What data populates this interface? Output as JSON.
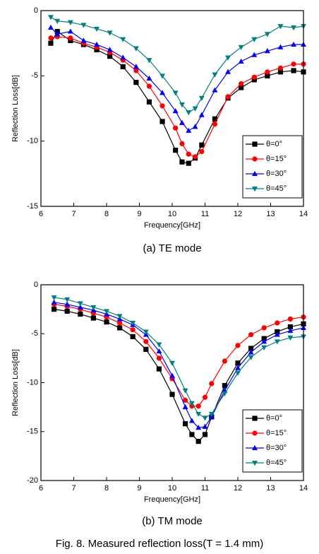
{
  "chart_data": [
    {
      "type": "line",
      "caption": "(a) TE mode",
      "xlabel": "Frequency[GHz]",
      "ylabel": "Reflection Loss[dB]",
      "xlim": [
        6,
        14
      ],
      "ylim": [
        -15,
        0
      ],
      "xticks": [
        6,
        7,
        8,
        9,
        10,
        11,
        12,
        13,
        14
      ],
      "yticks": [
        0,
        -5,
        -10,
        -15
      ],
      "legend": "lower right",
      "x": [
        6.3,
        6.5,
        6.9,
        7.3,
        7.7,
        8.1,
        8.5,
        8.9,
        9.3,
        9.7,
        10.1,
        10.3,
        10.5,
        10.7,
        10.9,
        11.3,
        11.7,
        12.1,
        12.5,
        12.9,
        13.3,
        13.7,
        14.0
      ],
      "series": [
        {
          "name": "θ=0°",
          "color": "#000000",
          "marker": "square",
          "values": [
            -2.5,
            -1.6,
            -2.3,
            -2.6,
            -3.0,
            -3.5,
            -4.3,
            -5.5,
            -7.0,
            -8.5,
            -10.7,
            -11.6,
            -11.7,
            -11.3,
            -10.3,
            -8.3,
            -6.7,
            -5.9,
            -5.3,
            -5.0,
            -4.7,
            -4.6,
            -4.7
          ]
        },
        {
          "name": "θ=15°",
          "color": "#ff0000",
          "marker": "circle",
          "values": [
            -2.1,
            -2.0,
            -2.1,
            -2.5,
            -2.8,
            -3.2,
            -3.8,
            -4.6,
            -5.8,
            -7.3,
            -9.0,
            -10.2,
            -11.0,
            -11.2,
            -10.8,
            -8.7,
            -6.6,
            -5.6,
            -5.1,
            -4.7,
            -4.4,
            -4.1,
            -4.1
          ]
        },
        {
          "name": "θ=30°",
          "color": "#0000ff",
          "marker": "triangle-up",
          "values": [
            -1.3,
            -1.8,
            -1.6,
            -2.3,
            -2.6,
            -3.0,
            -3.6,
            -4.3,
            -5.2,
            -6.3,
            -7.7,
            -8.6,
            -9.2,
            -8.9,
            -8.0,
            -6.1,
            -4.7,
            -3.9,
            -3.4,
            -3.1,
            -2.8,
            -2.6,
            -2.6
          ]
        },
        {
          "name": "θ=45°",
          "color": "#008080",
          "marker": "triangle-down",
          "values": [
            -0.5,
            -0.8,
            -0.9,
            -1.1,
            -1.4,
            -1.7,
            -2.2,
            -2.9,
            -3.8,
            -5.0,
            -6.3,
            -7.2,
            -7.8,
            -7.5,
            -6.7,
            -4.9,
            -3.6,
            -2.8,
            -2.2,
            -1.8,
            -1.2,
            -1.3,
            -1.2
          ]
        }
      ]
    },
    {
      "type": "line",
      "caption": "(b) TM mode",
      "xlabel": "Frequency[GHz]",
      "ylabel": "Reflection Loss[dB]",
      "xlim": [
        6,
        14
      ],
      "ylim": [
        -20,
        0
      ],
      "xticks": [
        6,
        7,
        8,
        9,
        10,
        11,
        12,
        13,
        14
      ],
      "yticks": [
        0,
        -5,
        -10,
        -15,
        -20
      ],
      "legend": "lower right",
      "x": [
        6.4,
        6.8,
        7.2,
        7.6,
        8.0,
        8.4,
        8.8,
        9.2,
        9.6,
        10.0,
        10.4,
        10.6,
        10.8,
        11.0,
        11.2,
        11.6,
        12.0,
        12.4,
        12.8,
        13.2,
        13.6,
        14.0
      ],
      "series": [
        {
          "name": "θ=0°",
          "color": "#000000",
          "marker": "square",
          "values": [
            -2.5,
            -2.7,
            -3.0,
            -3.4,
            -3.8,
            -4.4,
            -5.3,
            -6.6,
            -8.6,
            -11.2,
            -14.2,
            -15.3,
            -16.0,
            -15.3,
            -13.5,
            -10.3,
            -8.0,
            -6.5,
            -5.5,
            -4.8,
            -4.3,
            -4.0
          ]
        },
        {
          "name": "θ=15°",
          "color": "#ff0000",
          "marker": "circle",
          "values": [
            -2.0,
            -2.2,
            -2.5,
            -2.9,
            -3.3,
            -3.9,
            -4.6,
            -5.8,
            -7.5,
            -9.6,
            -11.8,
            -12.4,
            -12.4,
            -11.5,
            -10.1,
            -7.8,
            -6.2,
            -5.1,
            -4.4,
            -3.9,
            -3.5,
            -3.3
          ]
        },
        {
          "name": "θ=30°",
          "color": "#0000ff",
          "marker": "triangle-up",
          "values": [
            -1.8,
            -2.0,
            -2.3,
            -2.6,
            -3.0,
            -3.5,
            -4.1,
            -5.1,
            -6.8,
            -9.3,
            -12.5,
            -13.9,
            -14.6,
            -14.5,
            -13.5,
            -10.8,
            -8.5,
            -6.9,
            -5.8,
            -5.1,
            -4.7,
            -4.4
          ]
        },
        {
          "name": "θ=45°",
          "color": "#008080",
          "marker": "triangle-down",
          "values": [
            -1.3,
            -1.5,
            -1.9,
            -2.3,
            -2.7,
            -3.2,
            -3.9,
            -4.8,
            -6.1,
            -8.0,
            -10.8,
            -12.1,
            -13.2,
            -13.6,
            -13.2,
            -11.1,
            -9.0,
            -7.4,
            -6.4,
            -5.8,
            -5.4,
            -5.3
          ]
        }
      ]
    }
  ],
  "figure_caption": "Fig. 8. Measured reflection loss(T = 1.4 mm)"
}
